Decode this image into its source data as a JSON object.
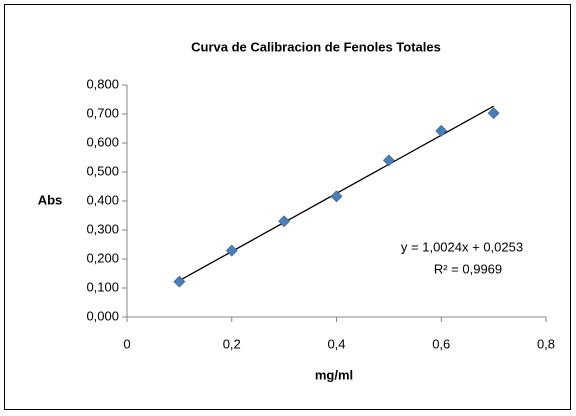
{
  "chart_data": {
    "type": "scatter",
    "title": "Curva de Calibracion de Fenoles Totales",
    "xlabel": "mg/ml",
    "ylabel": "Abs",
    "color": "#4a7ebb",
    "x": [
      0.1,
      0.2,
      0.3,
      0.4,
      0.5,
      0.6,
      0.7
    ],
    "values": [
      0.122,
      0.229,
      0.33,
      0.416,
      0.54,
      0.642,
      0.703
    ],
    "xlim": [
      0,
      0.8
    ],
    "xticks": [
      0,
      {
        "value": 0.2,
        "label": "0,2"
      },
      {
        "value": 0.4,
        "label": "0,4"
      },
      {
        "value": 0.6,
        "label": "0,6"
      },
      {
        "value": 0.8,
        "label": "0,8"
      }
    ],
    "ylim": [
      0,
      0.8
    ],
    "yticks": [
      {
        "value": 0,
        "label": "0,000"
      },
      {
        "value": 0.1,
        "label": "0,100"
      },
      {
        "value": 0.2,
        "label": "0,200"
      },
      {
        "value": 0.3,
        "label": "0,300"
      },
      {
        "value": 0.4,
        "label": "0,400"
      },
      {
        "value": 0.5,
        "label": "0,500"
      },
      {
        "value": 0.6,
        "label": "0,600"
      },
      {
        "value": 0.7,
        "label": "0,700"
      },
      {
        "value": 0.8,
        "label": "0,800"
      }
    ],
    "grid": false,
    "trendline": {
      "slope": 1.0024,
      "intercept": 0.0253,
      "equation": "y = 1,0024x + 0,0253",
      "r2": "R² = 0,9969"
    }
  }
}
